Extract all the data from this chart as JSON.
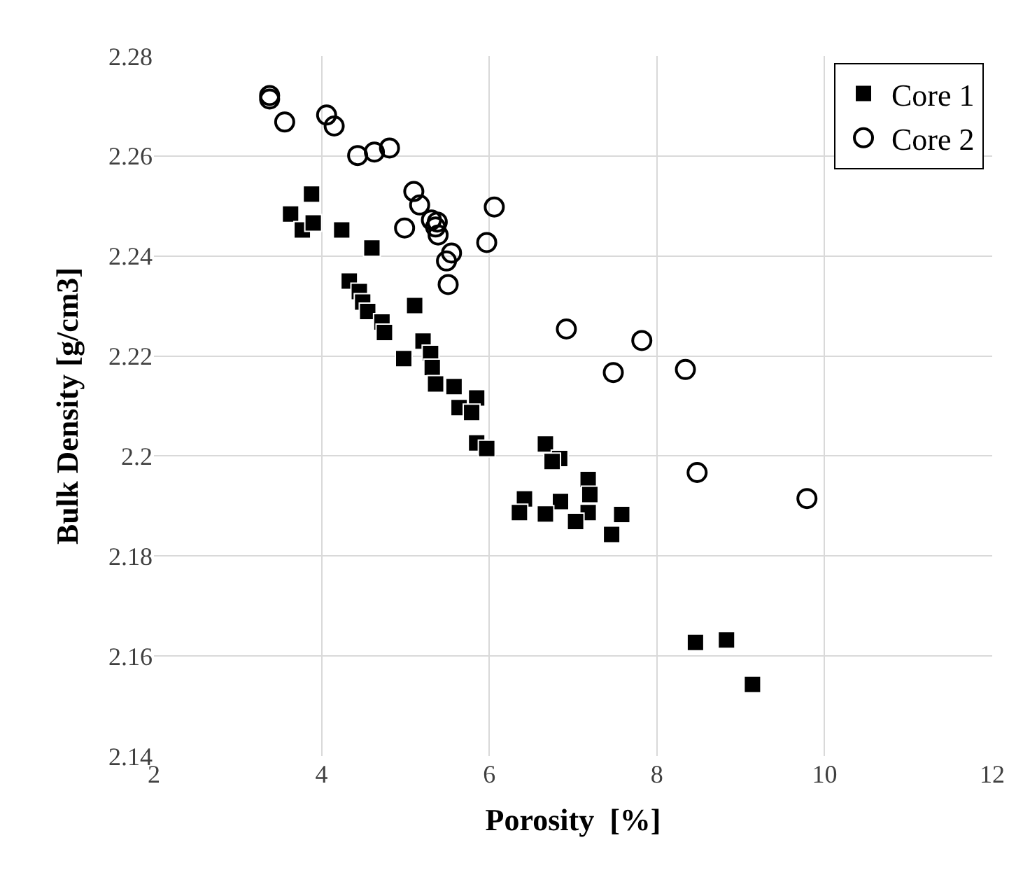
{
  "chart_data": {
    "type": "scatter",
    "xlabel": "Porosity  [%]",
    "ylabel": "Bulk Density [g/cm3]",
    "xlim": [
      2,
      12
    ],
    "xticks": [
      2,
      4,
      6,
      8,
      10,
      12
    ],
    "ylim": [
      2.14,
      2.28
    ],
    "yticks": [
      {
        "value": 2.14,
        "label": "2.14"
      },
      {
        "value": 2.16,
        "label": "2.16"
      },
      {
        "value": 2.18,
        "label": "2.18"
      },
      {
        "value": 2.2,
        "label": "2.2"
      },
      {
        "value": 2.22,
        "label": "2.22"
      },
      {
        "value": 2.24,
        "label": "2.24"
      },
      {
        "value": 2.26,
        "label": "2.26"
      },
      {
        "value": 2.28,
        "label": "2.28"
      }
    ],
    "grid": true,
    "legend": "top right",
    "series": [
      {
        "name": "Core 1",
        "color": "#000000",
        "marker": "square",
        "x": [
          3.88,
          3.63,
          3.77,
          3.9,
          4.24,
          4.6,
          4.33,
          4.45,
          4.49,
          4.55,
          4.72,
          4.75,
          5.11,
          4.98,
          5.21,
          5.3,
          5.32,
          5.36,
          5.58,
          5.85,
          5.64,
          5.79,
          5.85,
          5.97,
          6.67,
          6.84,
          6.75,
          7.18,
          7.2,
          6.42,
          6.36,
          6.85,
          6.67,
          7.18,
          7.03,
          7.58,
          7.46,
          8.46,
          8.83,
          9.14
        ],
        "values": [
          2.2524,
          2.2484,
          2.2452,
          2.2466,
          2.2452,
          2.2416,
          2.235,
          2.2329,
          2.2308,
          2.2289,
          2.2268,
          2.2247,
          2.2301,
          2.2195,
          2.223,
          2.2205,
          2.2177,
          2.2144,
          2.2139,
          2.2116,
          2.2097,
          2.2087,
          2.2026,
          2.2015,
          2.2024,
          2.1995,
          2.1989,
          2.1953,
          2.1923,
          2.1914,
          2.1887,
          2.1909,
          2.1884,
          2.1887,
          2.1869,
          2.1883,
          2.1843,
          2.1627,
          2.1632,
          2.1543
        ]
      },
      {
        "name": "Core 2",
        "color": "#000000",
        "marker": "circle",
        "x": [
          3.38,
          3.38,
          3.56,
          4.06,
          4.15,
          4.43,
          4.63,
          4.81,
          5.1,
          5.17,
          5.31,
          4.99,
          6.06,
          5.97,
          5.38,
          5.36,
          5.39,
          5.55,
          5.49,
          5.51,
          6.92,
          7.82,
          7.48,
          8.34,
          8.48,
          9.79
        ],
        "values": [
          2.2721,
          2.2714,
          2.2668,
          2.2682,
          2.266,
          2.2601,
          2.2608,
          2.2616,
          2.2529,
          2.2502,
          2.2472,
          2.2456,
          2.2498,
          2.2427,
          2.2468,
          2.2458,
          2.2442,
          2.2406,
          2.239,
          2.2343,
          2.2254,
          2.2231,
          2.2167,
          2.2173,
          2.1967,
          2.1915
        ]
      }
    ]
  }
}
